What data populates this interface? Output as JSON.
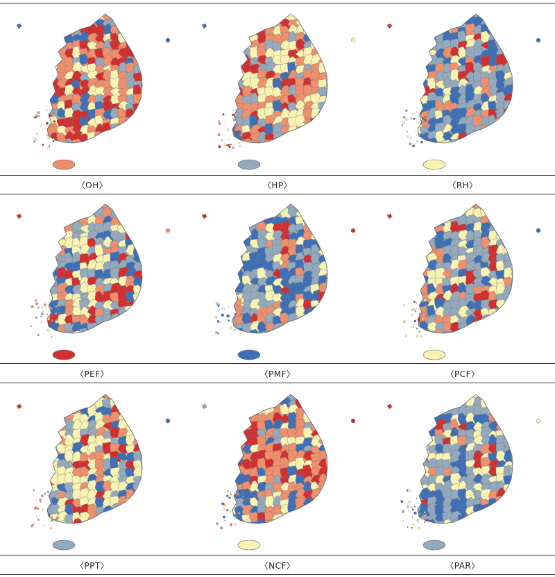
{
  "palette": {
    "dark_red": "#d42f2f",
    "orange": "#ef8f6b",
    "cream": "#f9f3b2",
    "gray_blue": "#94a9bc",
    "blue": "#3f6fb5"
  },
  "panels": [
    {
      "caption": "〈OH〉",
      "dominant": [
        "orange",
        "dark_red",
        "cream",
        "gray_blue",
        "blue"
      ],
      "jeju": "orange",
      "dokdo": "blue"
    },
    {
      "caption": "〈HP〉",
      "dominant": [
        "orange",
        "cream",
        "dark_red",
        "gray_blue",
        "blue"
      ],
      "jeju": "gray_blue",
      "dokdo": "cream"
    },
    {
      "caption": "〈RH〉",
      "dominant": [
        "gray_blue",
        "blue",
        "cream",
        "orange",
        "dark_red"
      ],
      "jeju": "cream",
      "dokdo": "blue"
    },
    {
      "caption": "〈PEF〉",
      "dominant": [
        "gray_blue",
        "cream",
        "orange",
        "blue",
        "dark_red"
      ],
      "jeju": "dark_red",
      "dokdo": "orange"
    },
    {
      "caption": "〈PMF〉",
      "dominant": [
        "gray_blue",
        "blue",
        "cream",
        "orange",
        "dark_red"
      ],
      "jeju": "blue",
      "dokdo": "dark_red"
    },
    {
      "caption": "〈PCF〉",
      "dominant": [
        "gray_blue",
        "cream",
        "blue",
        "orange",
        "dark_red"
      ],
      "jeju": "cream",
      "dokdo": "blue"
    },
    {
      "caption": "〈PPT〉",
      "dominant": [
        "cream",
        "orange",
        "gray_blue",
        "blue",
        "dark_red"
      ],
      "jeju": "gray_blue",
      "dokdo": "blue"
    },
    {
      "caption": "〈NCF〉",
      "dominant": [
        "orange",
        "cream",
        "blue",
        "dark_red",
        "gray_blue"
      ],
      "jeju": "cream",
      "dokdo": "dark_red"
    },
    {
      "caption": "〈PAR〉",
      "dominant": [
        "gray_blue",
        "cream",
        "blue",
        "orange",
        "dark_red"
      ],
      "jeju": "gray_blue",
      "dokdo": "cream"
    }
  ]
}
